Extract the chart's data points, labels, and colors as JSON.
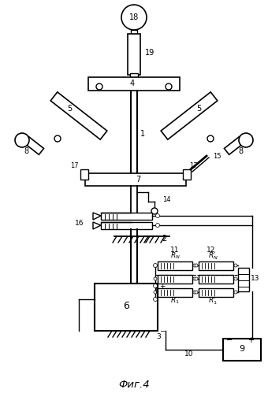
{
  "title": "Фиг.4",
  "bg_color": "#ffffff",
  "fig_width": 3.4,
  "fig_height": 4.99,
  "dpi": 100
}
